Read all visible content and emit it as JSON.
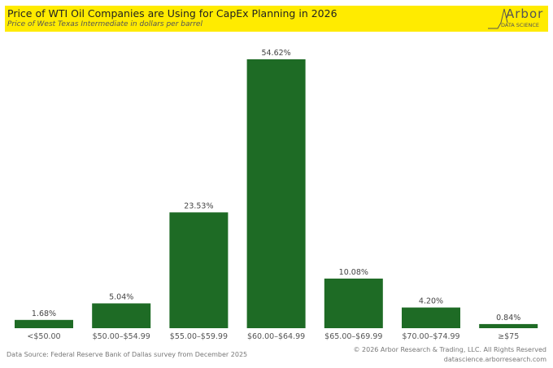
{
  "header": {
    "title": "Price of WTI Oil Companies are Using for CapEx Planning in 2026",
    "subtitle": "Price of West Texas Intermediate in dollars per barrel",
    "logo_word": "Arbor",
    "logo_sub": "DATA SCIENCE"
  },
  "chart_data": {
    "type": "bar",
    "title": "Price of WTI Oil Companies are Using for CapEx Planning in 2026",
    "subtitle": "Price of West Texas Intermediate in dollars per barrel",
    "categories": [
      "<$50.00",
      "$50.00–$54.99",
      "$55.00–$59.99",
      "$60.00–$64.99",
      "$65.00–$69.99",
      "$70.00–$74.99",
      "≥$75"
    ],
    "values": [
      1.68,
      5.04,
      23.53,
      54.62,
      10.08,
      4.2,
      0.84
    ],
    "data_labels": [
      "1.68%",
      "5.04%",
      "23.53%",
      "54.62%",
      "10.08%",
      "4.20%",
      "0.84%"
    ],
    "xlabel": "",
    "ylabel": "",
    "ylim": [
      0,
      60
    ],
    "grid": false,
    "bar_color": "#1e6b25"
  },
  "footer": {
    "source": "Data Source: Federal Reserve Bank of Dallas survey from December 2025",
    "copyright": "© 2026 Arbor Research & Trading, LLC. All Rights Reserved",
    "website": "datascience.arborresearch.com"
  }
}
